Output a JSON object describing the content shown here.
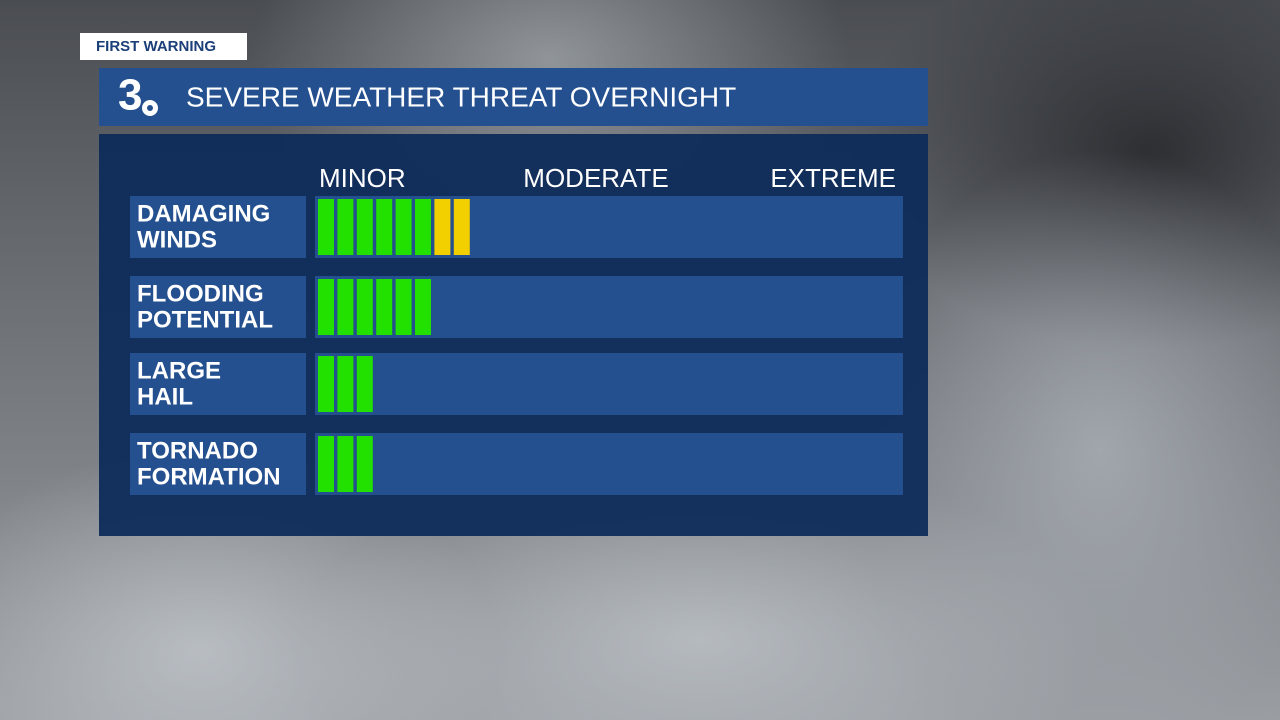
{
  "header": {
    "tag": "FIRST WARNING",
    "logo": "3",
    "title": "SEVERE WEATHER THREAT OVERNIGHT"
  },
  "scale": [
    "MINOR",
    "MODERATE",
    "EXTREME"
  ],
  "rows": [
    {
      "label": [
        "DAMAGING",
        "WINDS"
      ],
      "levels": [
        {
          "color": "#22e000",
          "count": 6
        },
        {
          "color": "#f2d000",
          "count": 2
        }
      ]
    },
    {
      "label": [
        "FLOODING",
        "POTENTIAL"
      ],
      "levels": [
        {
          "color": "#22e000",
          "count": 6
        }
      ]
    },
    {
      "label": [
        "LARGE",
        "HAIL"
      ],
      "levels": [
        {
          "color": "#22e000",
          "count": 3
        }
      ]
    },
    {
      "label": [
        "TORNADO",
        "FORMATION"
      ],
      "levels": [
        {
          "color": "#22e000",
          "count": 3
        }
      ]
    }
  ]
}
